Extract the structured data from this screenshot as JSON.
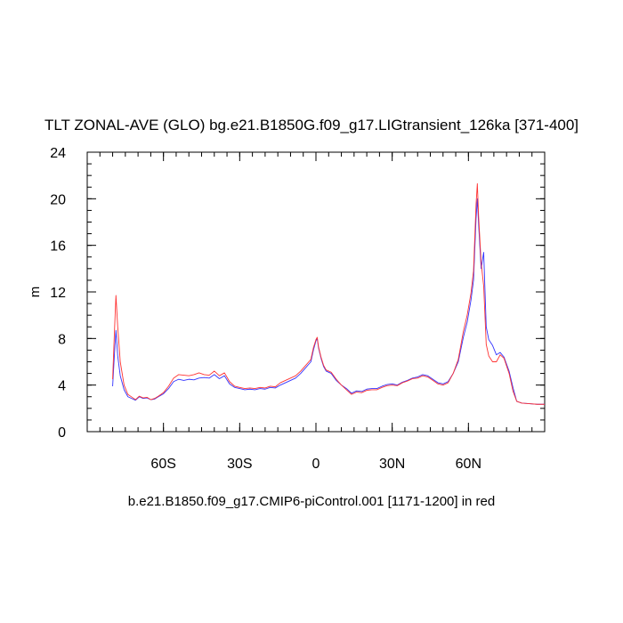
{
  "chart_data": {
    "type": "line",
    "title": "TLT ZONAL-AVE (GLO) bg.e21.B1850G.f09_g17.LIGtransient_126ka [371-400]",
    "subtitle": "b.e21.B1850.f09_g17.CMIP6-piControl.001 [1171-1200] in red",
    "ylabel": "m",
    "xlabel": "",
    "xlim": [
      -90,
      90
    ],
    "ylim": [
      0,
      24
    ],
    "x_ticks": [
      {
        "value": -60,
        "label": "60S"
      },
      {
        "value": -30,
        "label": "30S"
      },
      {
        "value": 0,
        "label": "0"
      },
      {
        "value": 30,
        "label": "30N"
      },
      {
        "value": 60,
        "label": "60N"
      }
    ],
    "y_ticks": [
      {
        "value": 0,
        "label": "0"
      },
      {
        "value": 4,
        "label": "4"
      },
      {
        "value": 8,
        "label": "8"
      },
      {
        "value": 12,
        "label": "12"
      },
      {
        "value": 16,
        "label": "16"
      },
      {
        "value": 20,
        "label": "20"
      },
      {
        "value": 24,
        "label": "24"
      }
    ],
    "grid": false,
    "series": [
      {
        "color": "#3333ff",
        "points": [
          [
            -80,
            3.9
          ],
          [
            -79.3,
            6.6
          ],
          [
            -78.7,
            8.7
          ],
          [
            -78,
            6.5
          ],
          [
            -77,
            4.8
          ],
          [
            -75.5,
            3.6
          ],
          [
            -74,
            3.0
          ],
          [
            -72,
            2.8
          ],
          [
            -71,
            2.7
          ],
          [
            -69.5,
            3.0
          ],
          [
            -68,
            2.85
          ],
          [
            -66.5,
            2.9
          ],
          [
            -65,
            2.75
          ],
          [
            -63.5,
            2.8
          ],
          [
            -62,
            3.0
          ],
          [
            -60,
            3.25
          ],
          [
            -58,
            3.7
          ],
          [
            -56,
            4.3
          ],
          [
            -54,
            4.5
          ],
          [
            -52,
            4.4
          ],
          [
            -50,
            4.5
          ],
          [
            -48,
            4.45
          ],
          [
            -46,
            4.6
          ],
          [
            -44,
            4.65
          ],
          [
            -42,
            4.6
          ],
          [
            -40,
            4.9
          ],
          [
            -38,
            4.55
          ],
          [
            -36,
            4.8
          ],
          [
            -34,
            4.1
          ],
          [
            -32,
            3.8
          ],
          [
            -30,
            3.7
          ],
          [
            -28,
            3.6
          ],
          [
            -26,
            3.65
          ],
          [
            -24,
            3.6
          ],
          [
            -22,
            3.7
          ],
          [
            -20,
            3.65
          ],
          [
            -18,
            3.8
          ],
          [
            -16,
            3.75
          ],
          [
            -14,
            4.0
          ],
          [
            -12,
            4.2
          ],
          [
            -10,
            4.4
          ],
          [
            -8,
            4.6
          ],
          [
            -6,
            5.0
          ],
          [
            -4,
            5.5
          ],
          [
            -2,
            6.0
          ],
          [
            -1,
            7.0
          ],
          [
            0,
            7.8
          ],
          [
            0.5,
            8.0
          ],
          [
            1,
            7.2
          ],
          [
            2,
            6.3
          ],
          [
            3,
            5.6
          ],
          [
            4,
            5.2
          ],
          [
            6,
            5.0
          ],
          [
            8,
            4.4
          ],
          [
            10,
            4.0
          ],
          [
            12,
            3.7
          ],
          [
            14,
            3.3
          ],
          [
            16,
            3.5
          ],
          [
            18,
            3.45
          ],
          [
            20,
            3.65
          ],
          [
            22,
            3.7
          ],
          [
            24,
            3.7
          ],
          [
            26,
            3.9
          ],
          [
            28,
            4.05
          ],
          [
            30,
            4.1
          ],
          [
            32,
            4.0
          ],
          [
            34,
            4.25
          ],
          [
            36,
            4.4
          ],
          [
            38,
            4.6
          ],
          [
            40,
            4.7
          ],
          [
            42,
            4.9
          ],
          [
            44,
            4.8
          ],
          [
            46,
            4.5
          ],
          [
            48,
            4.2
          ],
          [
            50,
            4.1
          ],
          [
            52,
            4.3
          ],
          [
            54,
            5.0
          ],
          [
            56,
            6.0
          ],
          [
            58,
            8.1
          ],
          [
            59.5,
            9.4
          ],
          [
            61,
            11.3
          ],
          [
            62,
            13.0
          ],
          [
            63,
            18.3
          ],
          [
            63.5,
            20.0
          ],
          [
            64,
            17.8
          ],
          [
            65,
            14.0
          ],
          [
            66,
            15.4
          ],
          [
            67,
            9.0
          ],
          [
            68,
            7.9
          ],
          [
            69.5,
            7.4
          ],
          [
            71,
            6.6
          ],
          [
            72.5,
            6.8
          ],
          [
            74,
            6.4
          ],
          [
            76,
            5.2
          ],
          [
            77.5,
            3.8
          ],
          [
            79,
            2.6
          ],
          [
            81,
            2.45
          ],
          [
            84,
            2.4
          ],
          [
            87,
            2.35
          ],
          [
            90,
            2.35
          ]
        ]
      },
      {
        "color": "#ff3333",
        "points": [
          [
            -80,
            4.5
          ],
          [
            -79.3,
            8.5
          ],
          [
            -78.7,
            11.7
          ],
          [
            -78,
            9.0
          ],
          [
            -77,
            6.0
          ],
          [
            -75.5,
            4.0
          ],
          [
            -74,
            3.2
          ],
          [
            -72,
            2.9
          ],
          [
            -71,
            2.75
          ],
          [
            -69.5,
            3.05
          ],
          [
            -68,
            2.9
          ],
          [
            -66.5,
            2.95
          ],
          [
            -65,
            2.75
          ],
          [
            -63.5,
            2.85
          ],
          [
            -62,
            3.05
          ],
          [
            -60,
            3.35
          ],
          [
            -58,
            3.9
          ],
          [
            -56,
            4.6
          ],
          [
            -54,
            4.9
          ],
          [
            -52,
            4.85
          ],
          [
            -50,
            4.8
          ],
          [
            -48,
            4.9
          ],
          [
            -46,
            5.05
          ],
          [
            -44,
            4.9
          ],
          [
            -42,
            4.85
          ],
          [
            -40,
            5.2
          ],
          [
            -38,
            4.8
          ],
          [
            -36,
            5.05
          ],
          [
            -34,
            4.3
          ],
          [
            -32,
            3.9
          ],
          [
            -30,
            3.8
          ],
          [
            -28,
            3.7
          ],
          [
            -26,
            3.75
          ],
          [
            -24,
            3.7
          ],
          [
            -22,
            3.8
          ],
          [
            -20,
            3.75
          ],
          [
            -18,
            3.9
          ],
          [
            -16,
            3.85
          ],
          [
            -14,
            4.2
          ],
          [
            -12,
            4.4
          ],
          [
            -10,
            4.6
          ],
          [
            -8,
            4.8
          ],
          [
            -6,
            5.2
          ],
          [
            -4,
            5.7
          ],
          [
            -2,
            6.2
          ],
          [
            -1,
            7.2
          ],
          [
            0,
            7.9
          ],
          [
            0.5,
            8.1
          ],
          [
            1,
            7.3
          ],
          [
            2,
            6.4
          ],
          [
            3,
            5.7
          ],
          [
            4,
            5.3
          ],
          [
            6,
            5.1
          ],
          [
            8,
            4.5
          ],
          [
            10,
            4.0
          ],
          [
            12,
            3.6
          ],
          [
            14,
            3.2
          ],
          [
            16,
            3.4
          ],
          [
            18,
            3.35
          ],
          [
            20,
            3.55
          ],
          [
            22,
            3.6
          ],
          [
            24,
            3.6
          ],
          [
            26,
            3.8
          ],
          [
            28,
            3.95
          ],
          [
            30,
            4.0
          ],
          [
            32,
            3.95
          ],
          [
            34,
            4.2
          ],
          [
            36,
            4.35
          ],
          [
            38,
            4.55
          ],
          [
            40,
            4.6
          ],
          [
            42,
            4.8
          ],
          [
            44,
            4.7
          ],
          [
            46,
            4.4
          ],
          [
            48,
            4.1
          ],
          [
            50,
            4.0
          ],
          [
            52,
            4.2
          ],
          [
            54,
            5.0
          ],
          [
            56,
            6.2
          ],
          [
            58,
            8.6
          ],
          [
            59.5,
            10.0
          ],
          [
            61,
            11.9
          ],
          [
            62,
            13.8
          ],
          [
            63,
            19.5
          ],
          [
            63.5,
            21.3
          ],
          [
            64,
            18.5
          ],
          [
            65,
            14.5
          ],
          [
            66,
            12.5
          ],
          [
            67,
            7.5
          ],
          [
            68,
            6.5
          ],
          [
            69.5,
            6.0
          ],
          [
            71,
            6.0
          ],
          [
            72.5,
            6.6
          ],
          [
            74,
            6.3
          ],
          [
            76,
            5.0
          ],
          [
            77.5,
            3.5
          ],
          [
            79,
            2.6
          ],
          [
            81,
            2.45
          ],
          [
            84,
            2.4
          ],
          [
            87,
            2.35
          ],
          [
            90,
            2.35
          ]
        ]
      }
    ]
  }
}
